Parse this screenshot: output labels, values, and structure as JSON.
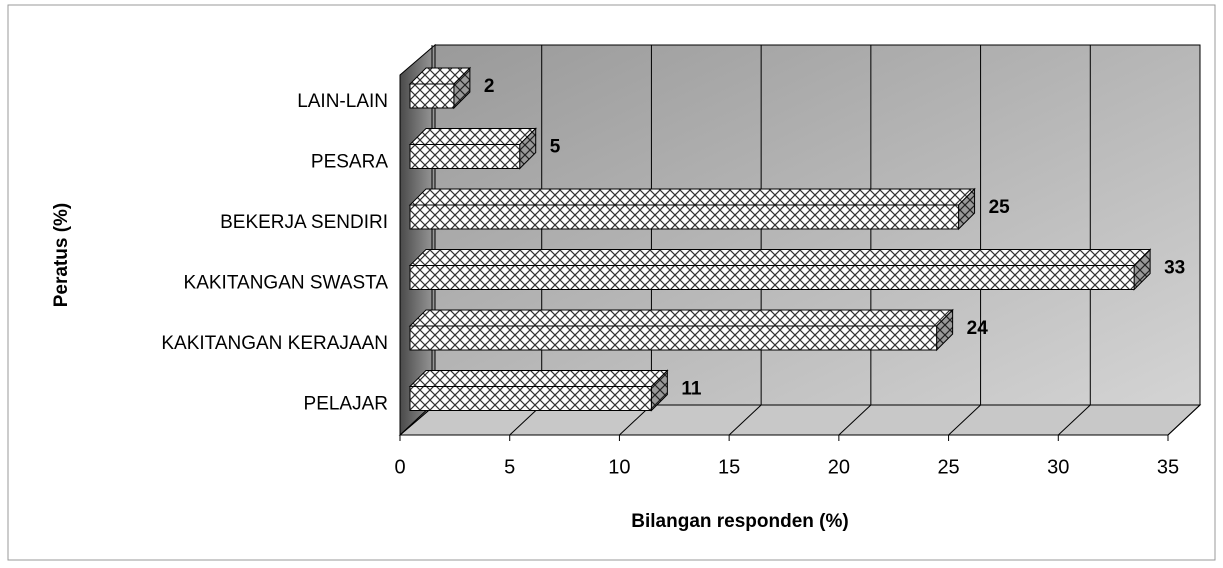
{
  "chart_data": {
    "type": "bar3d_horizontal",
    "x_label": "Bilangan responden (%)",
    "y_label": "Peratus (%)",
    "categories": [
      "PELAJAR",
      "KAKITANGAN KERAJAAN",
      "KAKITANGAN SWASTA",
      "BEKERJA SENDIRI",
      "PESARA",
      "LAIN-LAIN"
    ],
    "values": [
      11,
      24,
      33,
      25,
      5,
      2
    ],
    "xlim": [
      0,
      35
    ],
    "xticks": [
      0,
      5,
      10,
      15,
      20,
      25,
      30,
      35
    ],
    "grid": true
  }
}
